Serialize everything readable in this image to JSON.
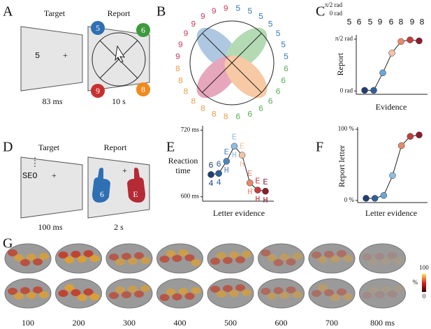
{
  "panels": {
    "a": "A",
    "b": "B",
    "c": "C",
    "d": "D",
    "e": "E",
    "f": "F",
    "g": "G"
  },
  "panel_a": {
    "target": "Target",
    "report": "Report",
    "stimulus": "5",
    "fixation": "+",
    "target_time": "83 ms",
    "report_time": "10 s",
    "choices": [
      "5",
      "6",
      "9",
      "8"
    ]
  },
  "panel_b": {
    "glyphs": [
      "5",
      "6",
      "9",
      "8"
    ]
  },
  "panel_c_mini": {
    "top": "π/2 rad",
    "bottom": "0 rad",
    "pairs": [
      [
        "5",
        "6"
      ],
      [
        "5",
        "9"
      ],
      [
        "6",
        "8"
      ],
      [
        "9",
        "8"
      ]
    ]
  },
  "panel_d": {
    "target": "Target",
    "report": "Report",
    "stimulus": "SEO",
    "fixation": "+",
    "target_time": "100 ms",
    "report_time": "2 s",
    "hands": [
      "6",
      "E"
    ]
  },
  "panel_e_glyphs": {
    "top": [
      "6",
      "6",
      "E",
      "E",
      "E",
      "E",
      "E",
      "E"
    ],
    "bottom": [
      "4",
      "4",
      "H",
      "H",
      "H",
      "H",
      "H",
      "H"
    ]
  },
  "panel_g": {
    "times": [
      "100",
      "200",
      "300",
      "400",
      "500",
      "600",
      "700",
      "800 ms"
    ],
    "colorbar_max": "100",
    "colorbar_unit": "%",
    "colorbar_min": "0"
  },
  "chart_data": [
    {
      "type": "line",
      "ylabel": "Report",
      "xlabel": "Evidence",
      "categories": [
        null,
        null,
        null,
        null,
        null,
        null,
        null
      ],
      "values": [
        0.02,
        0.02,
        0.55,
        1.15,
        1.5,
        1.55,
        1.52
      ],
      "colors": [
        "#1f3f73",
        "#2e5f9e",
        "#6aa6d6",
        "#f2c3a8",
        "#e8896a",
        "#c83b3b",
        "#8c1c2c"
      ],
      "ylim": [
        -0.1,
        1.7
      ],
      "yticks": [
        {
          "value": 0,
          "label": "0 rad"
        },
        {
          "value": 1.5708,
          "label": "π/2 rad"
        }
      ]
    },
    {
      "type": "line",
      "ylabel": "Reaction time",
      "xlabel": "Letter evidence",
      "categories": [
        null,
        null,
        null,
        null,
        null,
        null,
        null,
        null
      ],
      "values": [
        640,
        642,
        664,
        691,
        675,
        625,
        612,
        610
      ],
      "colors": [
        "#1f3f73",
        "#2e5f9e",
        "#4f86bd",
        "#8fbde3",
        "#f2c3a8",
        "#e8896a",
        "#c83b3b",
        "#8c1c2c"
      ],
      "ylim": [
        592,
        728
      ],
      "yticks": [
        {
          "value": 600,
          "label": "600 ms"
        },
        {
          "value": 720,
          "label": "720 ms"
        }
      ]
    },
    {
      "type": "line",
      "ylabel": "Report letter",
      "xlabel": "Letter evidence",
      "categories": [
        null,
        null,
        null,
        null,
        null,
        null,
        null
      ],
      "values": [
        3,
        3,
        7,
        35,
        77,
        90,
        92
      ],
      "colors": [
        "#1f3f73",
        "#2e5f9e",
        "#6aa6d6",
        "#8fbde3",
        "#e8896a",
        "#c83b3b",
        "#8c1c2c"
      ],
      "ylim": [
        -3,
        103
      ],
      "yticks": [
        {
          "value": 0,
          "label": "0 %"
        },
        {
          "value": 100,
          "label": "100 %"
        }
      ]
    }
  ]
}
